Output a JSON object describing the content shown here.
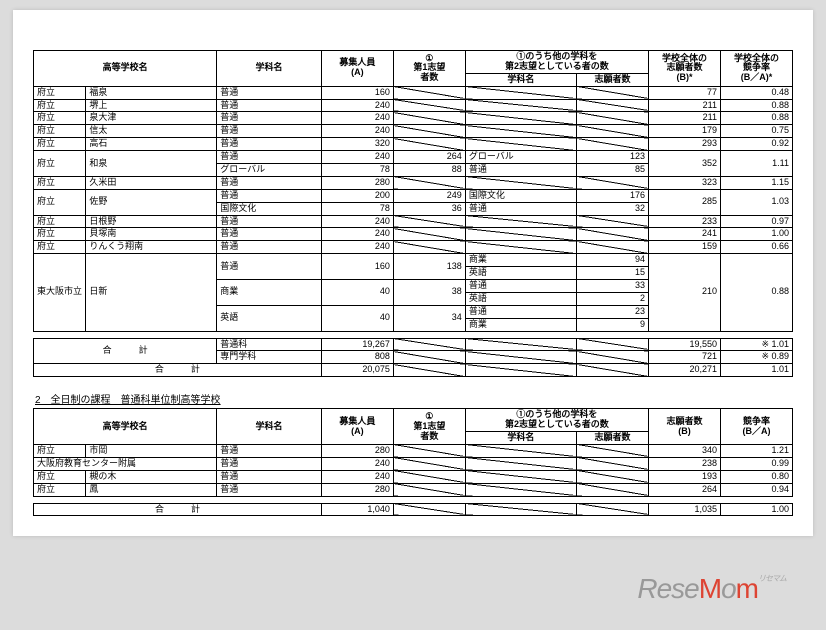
{
  "background_color": "#dcdcdc",
  "page_color": "#ffffff",
  "border_color": "#000000",
  "font_size_body": 9,
  "font_size_header": 10,
  "watermark": {
    "text": "ReseMom",
    "rubi": "リセマム",
    "color_main": "#999999",
    "color_accent": "#d43"
  },
  "table1": {
    "headers": {
      "school_name": "高等学校名",
      "dept_name": "学科名",
      "capacity": "募集人員\n(A)",
      "first_choice": "①\n第1志望\n者数",
      "second_choice_group": "①のうち他の学科を\n第2志望としている者の数",
      "second_dept": "学科名",
      "second_applicants": "志願者数",
      "total_applicants": "学校全体の\n志願者数\n(B)*",
      "ratio": "学校全体の\n競争率\n(B／A)*"
    },
    "rows": [
      {
        "prefix": "府立",
        "school": "福泉",
        "dept": "普通",
        "capacity": 160,
        "first": "",
        "sec_dept": "diag",
        "sec_app": "diag",
        "total": 77,
        "ratio": 0.48
      },
      {
        "prefix": "府立",
        "school": "堺上",
        "dept": "普通",
        "capacity": 240,
        "first": "",
        "sec_dept": "diag",
        "sec_app": "diag",
        "total": 211,
        "ratio": 0.88
      },
      {
        "prefix": "府立",
        "school": "泉大津",
        "dept": "普通",
        "capacity": 240,
        "first": "",
        "sec_dept": "diag",
        "sec_app": "diag",
        "total": 211,
        "ratio": 0.88
      },
      {
        "prefix": "府立",
        "school": "信太",
        "dept": "普通",
        "capacity": 240,
        "first": "",
        "sec_dept": "diag",
        "sec_app": "diag",
        "total": 179,
        "ratio": 0.75
      },
      {
        "prefix": "府立",
        "school": "高石",
        "dept": "普通",
        "capacity": 320,
        "first": "",
        "sec_dept": "diag",
        "sec_app": "diag",
        "total": 293,
        "ratio": 0.92
      },
      {
        "prefix": "府立",
        "school": "和泉",
        "school_rowspan": 2,
        "dept": "普通",
        "capacity": 240,
        "first": 264,
        "sec_dept": "グローバル",
        "sec_app": 123,
        "total": 352,
        "total_rowspan": 2,
        "ratio": 1.11,
        "ratio_rowspan": 2
      },
      {
        "dept": "グローバル",
        "capacity": 78,
        "first": 88,
        "sec_dept": "普通",
        "sec_app": 85
      },
      {
        "prefix": "府立",
        "school": "久米田",
        "dept": "普通",
        "capacity": 280,
        "first": "",
        "sec_dept": "diag",
        "sec_app": "diag",
        "total": 323,
        "ratio": 1.15
      },
      {
        "prefix": "府立",
        "school": "佐野",
        "school_rowspan": 2,
        "dept": "普通",
        "capacity": 200,
        "first": 249,
        "sec_dept": "国際文化",
        "sec_app": 176,
        "total": 285,
        "total_rowspan": 2,
        "ratio": 1.03,
        "ratio_rowspan": 2
      },
      {
        "dept": "国際文化",
        "capacity": 78,
        "first": 36,
        "sec_dept": "普通",
        "sec_app": 32
      },
      {
        "prefix": "府立",
        "school": "日根野",
        "dept": "普通",
        "capacity": 240,
        "first": "",
        "sec_dept": "diag",
        "sec_app": "diag",
        "total": 233,
        "ratio": 0.97
      },
      {
        "prefix": "府立",
        "school": "貝塚南",
        "dept": "普通",
        "capacity": 240,
        "first": "",
        "sec_dept": "diag",
        "sec_app": "diag",
        "total": 241,
        "ratio": 1.0
      },
      {
        "prefix": "府立",
        "school": "りんくう翔南",
        "dept": "普通",
        "capacity": 240,
        "first": "",
        "sec_dept": "diag",
        "sec_app": "diag",
        "total": 159,
        "ratio": 0.66
      }
    ],
    "nisshin": {
      "prefix": "東大阪市立",
      "school": "日新",
      "depts": [
        {
          "dept": "普通",
          "capacity": 160,
          "first": 138,
          "subs": [
            {
              "d": "商業",
              "a": 94
            },
            {
              "d": "英語",
              "a": 15
            }
          ]
        },
        {
          "dept": "商業",
          "capacity": 40,
          "first": 38,
          "subs": [
            {
              "d": "普通",
              "a": 33
            },
            {
              "d": "英語",
              "a": 2
            }
          ]
        },
        {
          "dept": "英語",
          "capacity": 40,
          "first": 34,
          "subs": [
            {
              "d": "普通",
              "a": 23
            },
            {
              "d": "商業",
              "a": 9
            }
          ]
        }
      ],
      "total": 210,
      "ratio": 0.88
    },
    "totals": {
      "label": "合　　　計",
      "rows": [
        {
          "dept": "普通科",
          "capacity": 19267,
          "total": 19550,
          "note": "※",
          "ratio": 1.01
        },
        {
          "dept": "専門学科",
          "capacity": 808,
          "total": 721,
          "note": "※",
          "ratio": 0.89
        }
      ],
      "grand": {
        "label": "合　　　計",
        "capacity": 20075,
        "total": 20271,
        "ratio": 1.01
      }
    }
  },
  "section2_title": "2　全日制の課程　普通科単位制高等学校",
  "table2": {
    "headers": {
      "school_name": "高等学校名",
      "dept_name": "学科名",
      "capacity": "募集人員\n(A)",
      "first_choice": "①\n第1志望\n者数",
      "second_choice_group": "①のうち他の学科を\n第2志望としている者の数",
      "second_dept": "学科名",
      "second_applicants": "志願者数",
      "total_applicants": "志願者数\n(B)",
      "ratio": "競争率\n(B／A)"
    },
    "rows": [
      {
        "prefix": "府立",
        "school": "市岡",
        "dept": "普通",
        "capacity": 280,
        "total": 340,
        "ratio": 1.21
      },
      {
        "prefix": "",
        "school": "大阪府教育センター附属",
        "dept": "普通",
        "capacity": 240,
        "total": 238,
        "ratio": 0.99
      },
      {
        "prefix": "府立",
        "school": "槻の木",
        "dept": "普通",
        "capacity": 240,
        "total": 193,
        "ratio": 0.8
      },
      {
        "prefix": "府立",
        "school": "鳳",
        "dept": "普通",
        "capacity": 280,
        "total": 264,
        "ratio": 0.94
      }
    ],
    "total": {
      "label": "合　　　計",
      "capacity": 1040,
      "applicants": 1035,
      "ratio": 1.0
    }
  }
}
